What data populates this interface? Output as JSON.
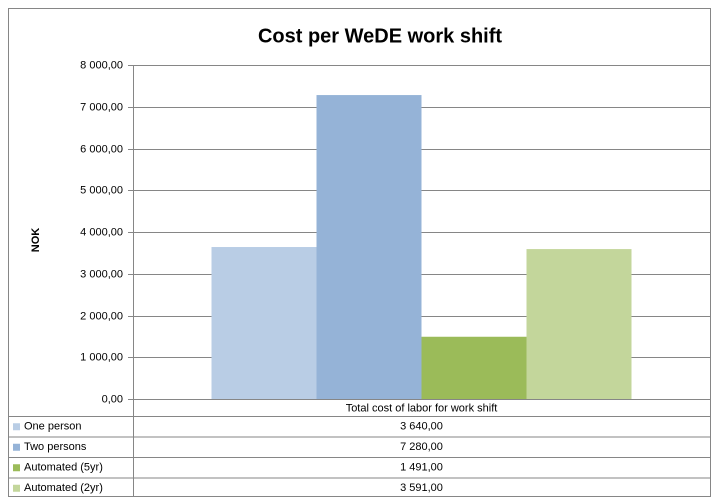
{
  "chart_data": {
    "type": "bar",
    "title": "Cost per WeDE work shift",
    "y_label": "NOK",
    "categories": [
      "Total cost of labor for work shift"
    ],
    "series": [
      {
        "name": "One person",
        "color": "#b9cde5",
        "values": [
          3640
        ],
        "value_labels": [
          "3 640,00"
        ]
      },
      {
        "name": "Two persons",
        "color": "#95b3d7",
        "values": [
          7280
        ],
        "value_labels": [
          "7 280,00"
        ]
      },
      {
        "name": "Automated (5yr)",
        "color": "#9bbb59",
        "values": [
          1491
        ],
        "value_labels": [
          "1 491,00"
        ]
      },
      {
        "name": "Automated (2yr)",
        "color": "#c3d69b",
        "values": [
          3591
        ],
        "value_labels": [
          "3 591,00"
        ]
      }
    ],
    "ylim": [
      0,
      8000
    ],
    "yticks": [
      {
        "value": 0,
        "label": "0,00"
      },
      {
        "value": 1000,
        "label": "1 000,00"
      },
      {
        "value": 2000,
        "label": "2 000,00"
      },
      {
        "value": 3000,
        "label": "3 000,00"
      },
      {
        "value": 4000,
        "label": "4 000,00"
      },
      {
        "value": 5000,
        "label": "5 000,00"
      },
      {
        "value": 6000,
        "label": "6 000,00"
      },
      {
        "value": 7000,
        "label": "7 000,00"
      },
      {
        "value": 8000,
        "label": "8 000,00"
      }
    ],
    "grid": true,
    "legend": "table"
  }
}
